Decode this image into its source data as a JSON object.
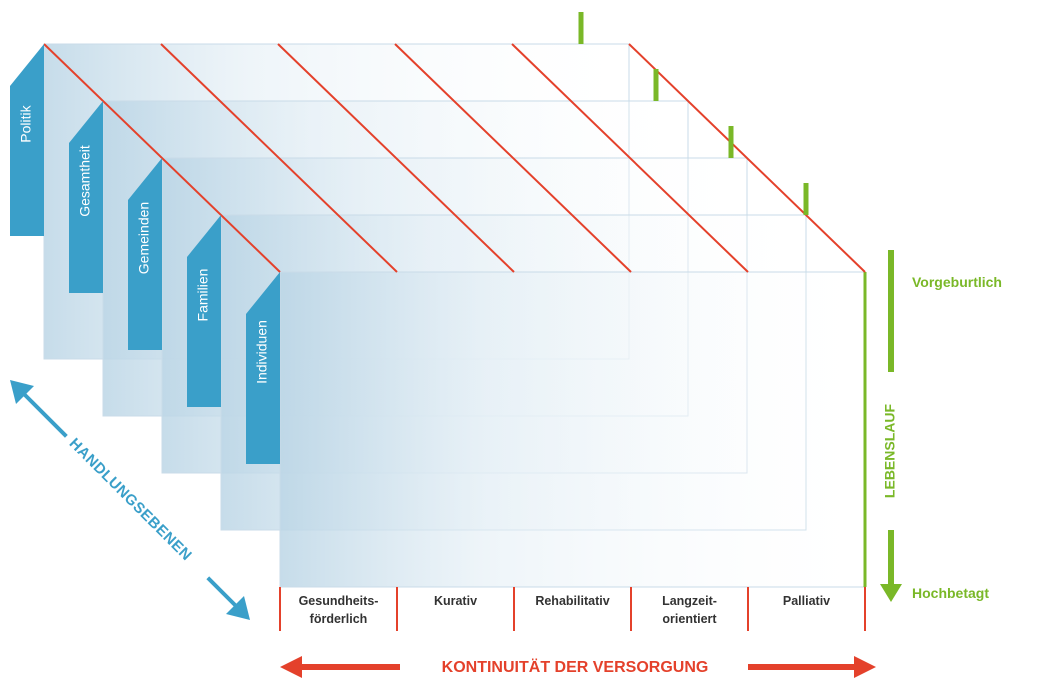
{
  "levels": {
    "axis_label": "HANDLUNGSEBENEN",
    "items": [
      {
        "label": "Politik"
      },
      {
        "label": "Gesamtheit"
      },
      {
        "label": "Gemeinden"
      },
      {
        "label": "Familien"
      },
      {
        "label": "Individuen"
      }
    ]
  },
  "care": {
    "axis_label": "KONTINUITÄT DER VERSORGUNG",
    "columns": [
      {
        "line1": "Gesundheits-",
        "line2": "förderlich"
      },
      {
        "line1": "Kurativ",
        "line2": ""
      },
      {
        "line1": "Rehabilitativ",
        "line2": ""
      },
      {
        "line1": "Langzeit-",
        "line2": "orientiert"
      },
      {
        "line1": "Palliativ",
        "line2": ""
      }
    ]
  },
  "lifecourse": {
    "axis_label": "LEBENSLAUF",
    "start_label": "Vorgeburtlich",
    "end_label": "Hochbetagt"
  },
  "colors": {
    "blue": "#3a9fc9",
    "red": "#e4412b",
    "green": "#7ab828",
    "panel_edge": "#c9dbe8",
    "text_dark": "#333333"
  }
}
